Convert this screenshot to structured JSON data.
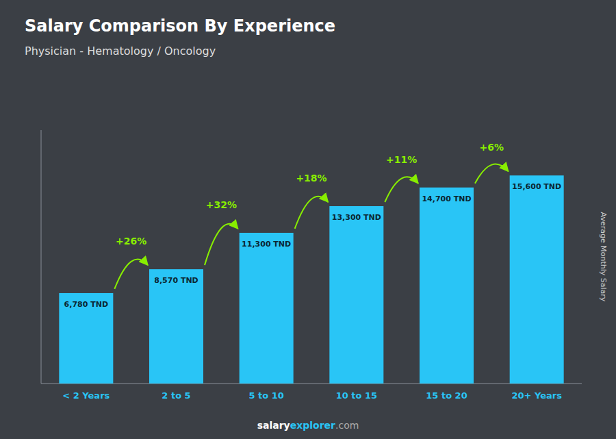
{
  "chart_data": {
    "type": "bar",
    "title": "Salary Comparison By Experience",
    "subtitle": "Physician - Hematology / Oncology",
    "y_label": "Average Monthly Salary",
    "categories": [
      "< 2 Years",
      "2 to 5",
      "5 to 10",
      "10 to 15",
      "15 to 20",
      "20+ Years"
    ],
    "values": [
      6780,
      8570,
      11300,
      13300,
      14700,
      15600
    ],
    "value_labels": [
      "6,780 TND",
      "8,570 TND",
      "11,300 TND",
      "13,300 TND",
      "14,700 TND",
      "15,600 TND"
    ],
    "data_labels": true,
    "annotations": [
      "+26%",
      "+32%",
      "+18%",
      "+11%",
      "+6%"
    ],
    "color": "#29c5f6",
    "ylim": [
      0,
      19000
    ],
    "tick_labels": "x",
    "grid": false,
    "footer": [
      "salary",
      "explorer",
      ".com"
    ]
  }
}
